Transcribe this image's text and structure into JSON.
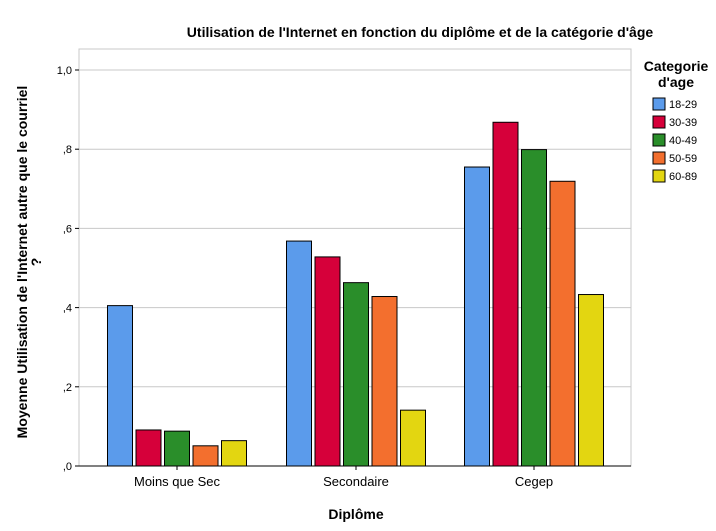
{
  "chart_data": {
    "type": "bar",
    "title": "Utilisation de l'Internet en fonction du diplôme et de la catégorie d'âge",
    "xlabel": "Diplôme",
    "ylabel_lines": [
      "Moyenne Utilisation de l'Internet autre que le courriel",
      "?"
    ],
    "ylim": [
      0,
      1.0
    ],
    "yticks": [
      {
        "value": 0,
        "label": ",0"
      },
      {
        "value": 0.2,
        "label": ",2"
      },
      {
        "value": 0.4,
        "label": ",4"
      },
      {
        "value": 0.6,
        "label": ",6"
      },
      {
        "value": 0.8,
        "label": ",8"
      },
      {
        "value": 1.0,
        "label": "1,0"
      }
    ],
    "grid": true,
    "categories": [
      "Moins que Sec",
      "Secondaire",
      "Cegep"
    ],
    "legend": {
      "title_lines": [
        "Categorie",
        "d'age"
      ],
      "placement": "right"
    },
    "series": [
      {
        "name": "18-29",
        "color": "#5B9BEB",
        "values": [
          0.405,
          0.568,
          0.755
        ]
      },
      {
        "name": "30-39",
        "color": "#D6003A",
        "values": [
          0.091,
          0.528,
          0.868
        ]
      },
      {
        "name": "40-49",
        "color": "#2A8E2A",
        "values": [
          0.088,
          0.463,
          0.799
        ]
      },
      {
        "name": "50-59",
        "color": "#F36F2E",
        "values": [
          0.051,
          0.428,
          0.719
        ]
      },
      {
        "name": "60-89",
        "color": "#E3D611",
        "values": [
          0.064,
          0.141,
          0.433
        ]
      }
    ]
  }
}
